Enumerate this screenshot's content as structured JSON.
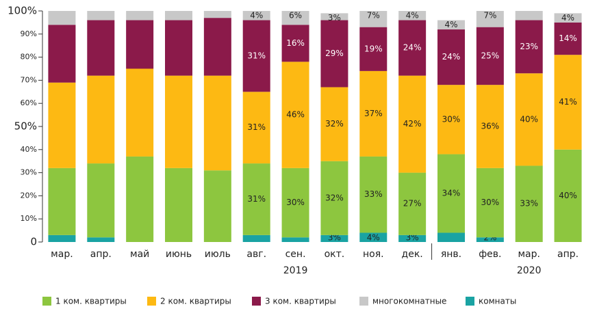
{
  "chart_data": {
    "type": "stacked_bar",
    "categories": [
      "мар.",
      "апр.",
      "май",
      "июнь",
      "июль",
      "авг.",
      "сен.",
      "окт.",
      "ноя.",
      "дек.",
      "янв.",
      "фев.",
      "мар.",
      "апр."
    ],
    "year_labels": [
      "2019",
      "2020"
    ],
    "series": [
      {
        "name": "1 ком. квартиры",
        "color": "#8dc63f",
        "values": [
          29,
          32,
          37,
          32,
          31,
          31,
          30,
          32,
          33,
          27,
          34,
          30,
          33,
          40
        ],
        "value_labels": [
          null,
          null,
          null,
          null,
          null,
          "31%",
          "30%",
          "32%",
          "33%",
          "27%",
          "34%",
          "30%",
          "33%",
          "40%"
        ]
      },
      {
        "name": "2 ком. квартиры",
        "color": "#fdb913",
        "values": [
          37,
          38,
          38,
          40,
          41,
          31,
          46,
          32,
          37,
          42,
          30,
          36,
          40,
          41
        ],
        "value_labels": [
          null,
          null,
          null,
          null,
          null,
          "31%",
          "46%",
          "32%",
          "37%",
          "42%",
          "30%",
          "36%",
          "40%",
          "41%"
        ]
      },
      {
        "name": "3 ком. квартиры",
        "color": "#8b1a4a",
        "values": [
          25,
          24,
          21,
          24,
          25,
          31,
          16,
          29,
          19,
          24,
          24,
          25,
          23,
          14
        ],
        "value_labels": [
          null,
          null,
          null,
          null,
          null,
          "31%",
          "16%",
          "29%",
          "19%",
          "24%",
          "24%",
          "25%",
          "23%",
          "14%"
        ]
      },
      {
        "name": "многокомнатные",
        "color": "#c8c8c8",
        "values": [
          6,
          4,
          4,
          4,
          3,
          4,
          6,
          3,
          7,
          4,
          4,
          7,
          4,
          4
        ],
        "value_labels": [
          null,
          null,
          null,
          null,
          null,
          "4%",
          "6%",
          "3%",
          "7%",
          "4%",
          "4%",
          "7%",
          null,
          "4%"
        ]
      },
      {
        "name": "комнаты",
        "color": "#1aa3a3",
        "values": [
          3,
          2,
          0,
          0,
          0,
          3,
          2,
          3,
          4,
          3,
          4,
          2,
          0,
          0
        ],
        "value_labels": [
          null,
          null,
          null,
          null,
          null,
          null,
          null,
          "3%",
          "4%",
          "3%",
          null,
          "2%",
          null,
          null
        ]
      }
    ],
    "ylim": [
      0,
      100
    ],
    "yticks": [
      0,
      {
        "value": 10,
        "label": "10%"
      },
      {
        "value": 20,
        "label": "20%"
      },
      {
        "value": 30,
        "label": "30%"
      },
      {
        "value": 40,
        "label": "40%"
      },
      {
        "value": 50,
        "label": "50%"
      },
      {
        "value": 60,
        "label": "60%"
      },
      {
        "value": 70,
        "label": "70%"
      },
      {
        "value": 80,
        "label": "80%"
      },
      {
        "value": 90,
        "label": "90%"
      },
      {
        "value": 100,
        "label": "100%"
      }
    ]
  }
}
